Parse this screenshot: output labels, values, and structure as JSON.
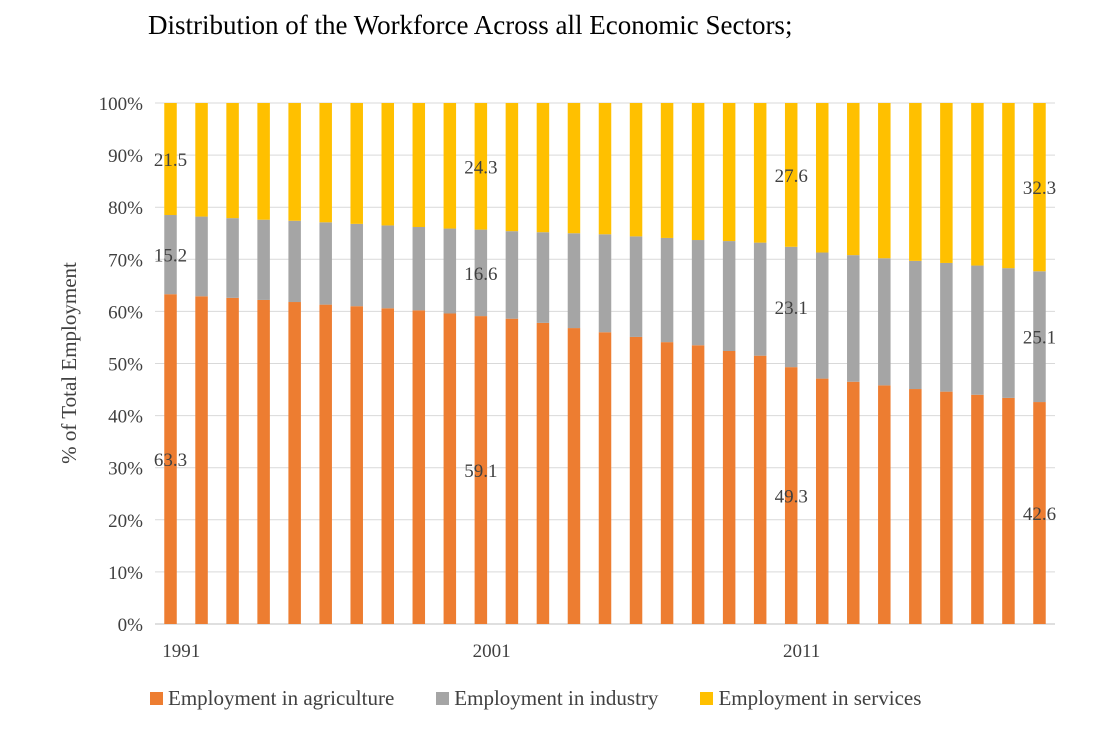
{
  "chart_data": {
    "type": "bar",
    "stacked": true,
    "title": "Distribution of the Workforce Across all Economic Sectors;",
    "xlabel": "",
    "ylabel": "% of Total Employment",
    "ylim": [
      0,
      100
    ],
    "y_ticks": [
      "0%",
      "10%",
      "20%",
      "30%",
      "40%",
      "50%",
      "60%",
      "70%",
      "80%",
      "90%",
      "100%"
    ],
    "x_tick_labels": [
      "1991",
      "2001",
      "2011"
    ],
    "categories": [
      1991,
      1992,
      1993,
      1994,
      1995,
      1996,
      1997,
      1998,
      1999,
      2000,
      2001,
      2002,
      2003,
      2004,
      2005,
      2006,
      2007,
      2008,
      2009,
      2010,
      2011,
      2012,
      2013,
      2014,
      2015,
      2016,
      2017,
      2018,
      2019
    ],
    "series": [
      {
        "name": "Employment in agriculture",
        "color": "#ED7D31",
        "values": [
          63.3,
          62.9,
          62.6,
          62.2,
          61.8,
          61.3,
          61.0,
          60.6,
          60.2,
          59.6,
          59.1,
          58.6,
          57.8,
          56.8,
          56.0,
          55.1,
          54.1,
          53.5,
          52.4,
          51.5,
          49.3,
          47.1,
          46.5,
          45.8,
          45.1,
          44.6,
          44.0,
          43.4,
          42.6
        ]
      },
      {
        "name": "Employment in industry",
        "color": "#A5A5A5",
        "values": [
          15.2,
          15.3,
          15.3,
          15.4,
          15.6,
          15.8,
          15.8,
          15.9,
          16.0,
          16.3,
          16.6,
          16.8,
          17.4,
          18.2,
          18.8,
          19.3,
          20.0,
          20.2,
          21.1,
          21.7,
          23.1,
          24.2,
          24.3,
          24.4,
          24.6,
          24.7,
          24.8,
          24.9,
          25.1
        ]
      },
      {
        "name": "Employment in services",
        "color": "#FFC000",
        "values": [
          21.5,
          21.8,
          22.1,
          22.4,
          22.6,
          22.9,
          23.2,
          23.5,
          23.8,
          24.1,
          24.3,
          24.6,
          24.8,
          25.0,
          25.2,
          25.6,
          25.9,
          26.3,
          26.5,
          26.8,
          27.6,
          28.7,
          29.2,
          29.8,
          30.3,
          30.7,
          31.2,
          31.7,
          32.3
        ]
      }
    ],
    "data_labels": [
      {
        "year": 1991,
        "series": 0,
        "text": "63.3"
      },
      {
        "year": 1991,
        "series": 1,
        "text": "15.2"
      },
      {
        "year": 1991,
        "series": 2,
        "text": "21.5"
      },
      {
        "year": 2001,
        "series": 0,
        "text": "59.1"
      },
      {
        "year": 2001,
        "series": 1,
        "text": "16.6"
      },
      {
        "year": 2001,
        "series": 2,
        "text": "24.3"
      },
      {
        "year": 2011,
        "series": 0,
        "text": "49.3"
      },
      {
        "year": 2011,
        "series": 1,
        "text": "23.1"
      },
      {
        "year": 2011,
        "series": 2,
        "text": "27.6"
      },
      {
        "year": 2019,
        "series": 0,
        "text": "42.6"
      },
      {
        "year": 2019,
        "series": 1,
        "text": "25.1"
      },
      {
        "year": 2019,
        "series": 2,
        "text": "32.3"
      }
    ],
    "grid": true,
    "legend_position": "bottom"
  }
}
